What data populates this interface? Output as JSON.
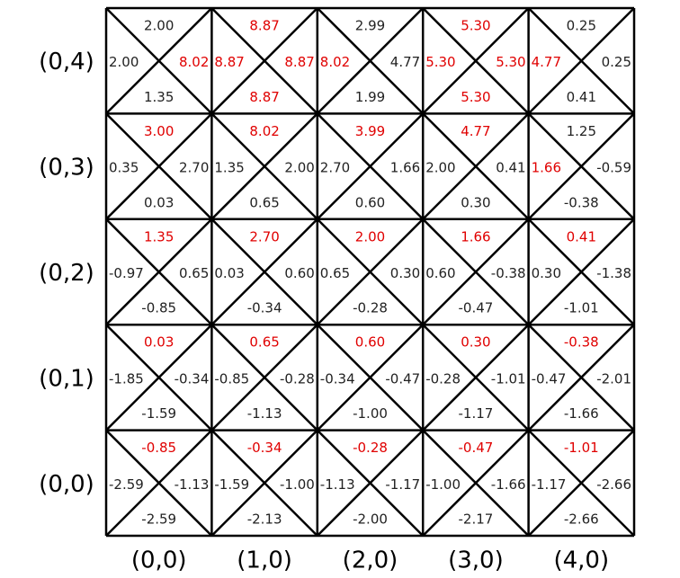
{
  "colors": {
    "highlight": "#e00000",
    "normal": "#222222",
    "grid": "#000000"
  },
  "row_labels": [
    "(0,4)",
    "(0,3)",
    "(0,2)",
    "(0,1)",
    "(0,0)"
  ],
  "col_labels": [
    "(0,0)",
    "(1,0)",
    "(2,0)",
    "(3,0)",
    "(4,0)"
  ],
  "cells": [
    [
      {
        "top": "2.00",
        "left": "2.00",
        "right": "8.02",
        "bottom": "1.35",
        "hi": [
          "right"
        ]
      },
      {
        "top": "8.87",
        "left": "8.87",
        "right": "8.87",
        "bottom": "8.87",
        "hi": [
          "top",
          "left",
          "right",
          "bottom"
        ]
      },
      {
        "top": "2.99",
        "left": "8.02",
        "right": "4.77",
        "bottom": "1.99",
        "hi": [
          "left"
        ]
      },
      {
        "top": "5.30",
        "left": "5.30",
        "right": "5.30",
        "bottom": "5.30",
        "hi": [
          "top",
          "left",
          "right",
          "bottom"
        ]
      },
      {
        "top": "0.25",
        "left": "4.77",
        "right": "0.25",
        "bottom": "0.41",
        "hi": [
          "left"
        ]
      }
    ],
    [
      {
        "top": "3.00",
        "left": "0.35",
        "right": "2.70",
        "bottom": "0.03",
        "hi": [
          "top"
        ]
      },
      {
        "top": "8.02",
        "left": "1.35",
        "right": "2.00",
        "bottom": "0.65",
        "hi": [
          "top"
        ]
      },
      {
        "top": "3.99",
        "left": "2.70",
        "right": "1.66",
        "bottom": "0.60",
        "hi": [
          "top"
        ]
      },
      {
        "top": "4.77",
        "left": "2.00",
        "right": "0.41",
        "bottom": "0.30",
        "hi": [
          "top"
        ]
      },
      {
        "top": "1.25",
        "left": "1.66",
        "right": "-0.59",
        "bottom": "-0.38",
        "hi": [
          "left"
        ]
      }
    ],
    [
      {
        "top": "1.35",
        "left": "-0.97",
        "right": "0.65",
        "bottom": "-0.85",
        "hi": [
          "top"
        ]
      },
      {
        "top": "2.70",
        "left": "0.03",
        "right": "0.60",
        "bottom": "-0.34",
        "hi": [
          "top"
        ]
      },
      {
        "top": "2.00",
        "left": "0.65",
        "right": "0.30",
        "bottom": "-0.28",
        "hi": [
          "top"
        ]
      },
      {
        "top": "1.66",
        "left": "0.60",
        "right": "-0.38",
        "bottom": "-0.47",
        "hi": [
          "top"
        ]
      },
      {
        "top": "0.41",
        "left": "0.30",
        "right": "-1.38",
        "bottom": "-1.01",
        "hi": [
          "top"
        ]
      }
    ],
    [
      {
        "top": "0.03",
        "left": "-1.85",
        "right": "-0.34",
        "bottom": "-1.59",
        "hi": [
          "top"
        ]
      },
      {
        "top": "0.65",
        "left": "-0.85",
        "right": "-0.28",
        "bottom": "-1.13",
        "hi": [
          "top"
        ]
      },
      {
        "top": "0.60",
        "left": "-0.34",
        "right": "-0.47",
        "bottom": "-1.00",
        "hi": [
          "top"
        ]
      },
      {
        "top": "0.30",
        "left": "-0.28",
        "right": "-1.01",
        "bottom": "-1.17",
        "hi": [
          "top"
        ]
      },
      {
        "top": "-0.38",
        "left": "-0.47",
        "right": "-2.01",
        "bottom": "-1.66",
        "hi": [
          "top"
        ]
      }
    ],
    [
      {
        "top": "-0.85",
        "left": "-2.59",
        "right": "-1.13",
        "bottom": "-2.59",
        "hi": [
          "top"
        ]
      },
      {
        "top": "-0.34",
        "left": "-1.59",
        "right": "-1.00",
        "bottom": "-2.13",
        "hi": [
          "top"
        ]
      },
      {
        "top": "-0.28",
        "left": "-1.13",
        "right": "-1.17",
        "bottom": "-2.00",
        "hi": [
          "top"
        ]
      },
      {
        "top": "-0.47",
        "left": "-1.00",
        "right": "-1.66",
        "bottom": "-2.17",
        "hi": [
          "top"
        ]
      },
      {
        "top": "-1.01",
        "left": "-1.17",
        "right": "-2.66",
        "bottom": "-2.66",
        "hi": [
          "top"
        ]
      }
    ]
  ]
}
